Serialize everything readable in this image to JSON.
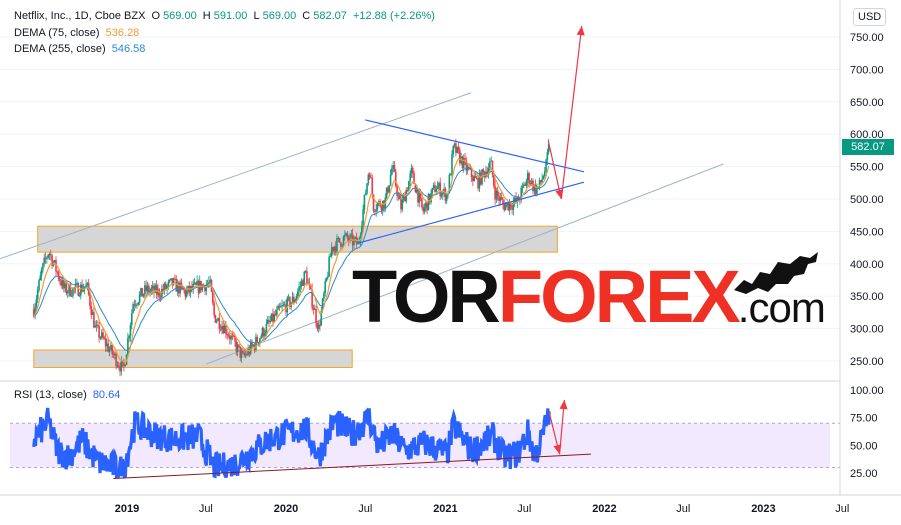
{
  "header": {
    "symbol": "Netflix, Inc., 1D, Cboe BZX",
    "o_label": "O",
    "o_value": "569.00",
    "h_label": "H",
    "h_value": "591.00",
    "l_label": "L",
    "l_value": "569.00",
    "c_label": "C",
    "c_value": "582.07",
    "change": "+12.88 (+2.26%)",
    "dema75_label": "DEMA (75, close)",
    "dema75_value": "536.28",
    "dema255_label": "DEMA (255, close)",
    "dema255_value": "546.58",
    "rsi_label": "RSI (13, close)",
    "rsi_value": "80.64"
  },
  "toolbar": {
    "unit": "USD"
  },
  "last_price": "582.07",
  "watermark": {
    "part1": "TOR",
    "part2": "FOREX",
    "part3": ".com"
  },
  "colors": {
    "bull": "#089981",
    "bear": "#f23645",
    "dema75": "#f29a38",
    "dema255": "#2b8ad1",
    "rsi": "#2962ff",
    "trendline": "#2962ff",
    "arrow": "#f23645",
    "zone": "#cfcfcf"
  },
  "chart_data": {
    "type": "candlestick",
    "price_axis": {
      "ticks": [
        "250.00",
        "300.00",
        "350.00",
        "400.00",
        "450.00",
        "500.00",
        "550.00",
        "600.00",
        "650.00",
        "700.00",
        "750.00"
      ],
      "range": [
        230,
        775
      ]
    },
    "time_axis": {
      "ticks": [
        "2019",
        "Jul",
        "2020",
        "Jul",
        "2021",
        "Jul",
        "2022",
        "Jul",
        "2023",
        "Jul"
      ]
    },
    "rsi_axis": {
      "ticks": [
        "25.00",
        "50.00",
        "75.00",
        "100.00"
      ],
      "range": [
        10,
        100
      ],
      "band": [
        30,
        70
      ]
    },
    "price_series": [
      [
        "2018-06-01",
        330
      ],
      [
        "2018-06-20",
        390
      ],
      [
        "2018-07-05",
        420
      ],
      [
        "2018-07-20",
        395
      ],
      [
        "2018-08-10",
        360
      ],
      [
        "2018-09-01",
        360
      ],
      [
        "2018-10-01",
        365
      ],
      [
        "2018-10-20",
        300
      ],
      [
        "2018-11-15",
        275
      ],
      [
        "2018-12-24",
        235
      ],
      [
        "2019-01-15",
        340
      ],
      [
        "2019-02-15",
        360
      ],
      [
        "2019-03-15",
        355
      ],
      [
        "2019-04-15",
        370
      ],
      [
        "2019-05-15",
        355
      ],
      [
        "2019-06-15",
        365
      ],
      [
        "2019-07-10",
        370
      ],
      [
        "2019-07-20",
        320
      ],
      [
        "2019-08-15",
        300
      ],
      [
        "2019-09-24",
        255
      ],
      [
        "2019-10-20",
        275
      ],
      [
        "2019-11-20",
        305
      ],
      [
        "2019-12-20",
        330
      ],
      [
        "2020-01-20",
        345
      ],
      [
        "2020-02-15",
        385
      ],
      [
        "2020-03-16",
        300
      ],
      [
        "2020-04-15",
        425
      ],
      [
        "2020-05-15",
        440
      ],
      [
        "2020-06-15",
        430
      ],
      [
        "2020-07-10",
        550
      ],
      [
        "2020-07-20",
        490
      ],
      [
        "2020-08-15",
        495
      ],
      [
        "2020-09-01",
        550
      ],
      [
        "2020-09-20",
        485
      ],
      [
        "2020-10-15",
        540
      ],
      [
        "2020-11-10",
        480
      ],
      [
        "2020-12-10",
        520
      ],
      [
        "2021-01-05",
        505
      ],
      [
        "2021-01-20",
        580
      ],
      [
        "2021-02-15",
        550
      ],
      [
        "2021-03-15",
        525
      ],
      [
        "2021-04-15",
        555
      ],
      [
        "2021-04-25",
        510
      ],
      [
        "2021-05-15",
        490
      ],
      [
        "2021-06-15",
        495
      ],
      [
        "2021-07-10",
        535
      ],
      [
        "2021-07-25",
        515
      ],
      [
        "2021-08-05",
        520
      ],
      [
        "2021-08-20",
        550
      ],
      [
        "2021-08-27",
        582
      ]
    ],
    "rsi_series": [
      [
        "2018-06-01",
        55
      ],
      [
        "2018-07-05",
        72
      ],
      [
        "2018-07-25",
        45
      ],
      [
        "2018-08-20",
        40
      ],
      [
        "2018-09-20",
        55
      ],
      [
        "2018-10-25",
        35
      ],
      [
        "2018-12-24",
        28
      ],
      [
        "2019-01-20",
        70
      ],
      [
        "2019-03-01",
        60
      ],
      [
        "2019-04-20",
        55
      ],
      [
        "2019-06-15",
        58
      ],
      [
        "2019-07-20",
        30
      ],
      [
        "2019-09-01",
        32
      ],
      [
        "2019-10-01",
        40
      ],
      [
        "2019-11-20",
        55
      ],
      [
        "2020-01-15",
        62
      ],
      [
        "2020-02-15",
        65
      ],
      [
        "2020-03-16",
        40
      ],
      [
        "2020-04-20",
        72
      ],
      [
        "2020-06-01",
        60
      ],
      [
        "2020-07-10",
        75
      ],
      [
        "2020-08-01",
        48
      ],
      [
        "2020-09-01",
        60
      ],
      [
        "2020-10-01",
        45
      ],
      [
        "2020-11-15",
        52
      ],
      [
        "2021-01-05",
        42
      ],
      [
        "2021-01-20",
        68
      ],
      [
        "2021-03-01",
        45
      ],
      [
        "2021-04-20",
        58
      ],
      [
        "2021-05-15",
        40
      ],
      [
        "2021-06-15",
        42
      ],
      [
        "2021-07-10",
        62
      ],
      [
        "2021-07-25",
        40
      ],
      [
        "2021-08-10",
        55
      ],
      [
        "2021-08-27",
        80.64
      ]
    ],
    "annotations": {
      "resistance_line": [
        [
          "2020-07-01",
          622
        ],
        [
          "2021-11-15",
          542
        ]
      ],
      "support_line": [
        [
          "2020-06-15",
          432
        ],
        [
          "2021-11-15",
          526
        ]
      ],
      "channel_upper": [
        [
          "2017-12-01",
          383
        ],
        [
          "2021-03-01",
          664
        ]
      ],
      "channel_lower": [
        [
          "2019-07-01",
          245
        ],
        [
          "2022-10-01",
          554
        ]
      ],
      "zone_upper": {
        "from": "2018-06-10",
        "to": "2021-09-15",
        "low": 418,
        "high": 458
      },
      "zone_lower": {
        "from": "2018-06-01",
        "to": "2020-06-01",
        "low": 240,
        "high": 267
      },
      "arrow_down": [
        [
          "2021-08-25",
          590
        ],
        [
          "2021-09-24",
          500
        ]
      ],
      "arrow_up": [
        [
          "2021-09-24",
          500
        ],
        [
          "2021-11-10",
          767
        ]
      ],
      "rsi_trendline": [
        [
          "2018-12-01",
          20
        ],
        [
          "2021-12-01",
          42
        ]
      ],
      "rsi_arrow_down": [
        [
          "2021-08-27",
          80
        ],
        [
          "2021-09-20",
          42
        ]
      ],
      "rsi_arrow_up": [
        [
          "2021-09-20",
          42
        ],
        [
          "2021-10-01",
          91
        ]
      ]
    }
  }
}
